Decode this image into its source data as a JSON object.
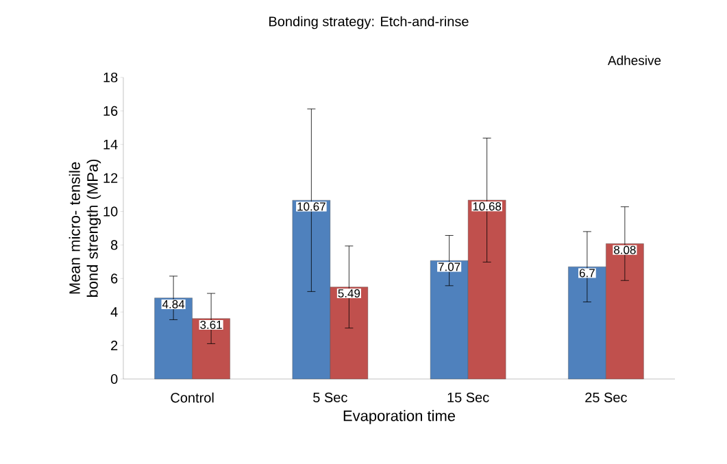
{
  "chart_data": {
    "type": "bar",
    "title": "Bonding strategy: Etch-and-rinse",
    "xlabel": "Evaporation time",
    "ylabel": "Mean micro- tensile bond strength (MPa)",
    "legend_title": "Adhesive",
    "categories": [
      "Control",
      "5 Sec",
      "15 Sec",
      "25 Sec"
    ],
    "series": [
      {
        "color": "#4f81bd",
        "values": [
          4.84,
          10.67,
          7.07,
          6.7
        ],
        "errors": [
          1.3,
          5.45,
          1.5,
          2.1
        ]
      },
      {
        "color": "#c0504d",
        "values": [
          3.61,
          5.49,
          10.68,
          8.08
        ],
        "errors": [
          1.5,
          2.45,
          3.7,
          2.2
        ]
      }
    ],
    "ylim": [
      0,
      18
    ],
    "yticks": [
      0,
      2,
      4,
      6,
      8,
      10,
      12,
      14,
      16,
      18
    ],
    "data_labels": true
  }
}
